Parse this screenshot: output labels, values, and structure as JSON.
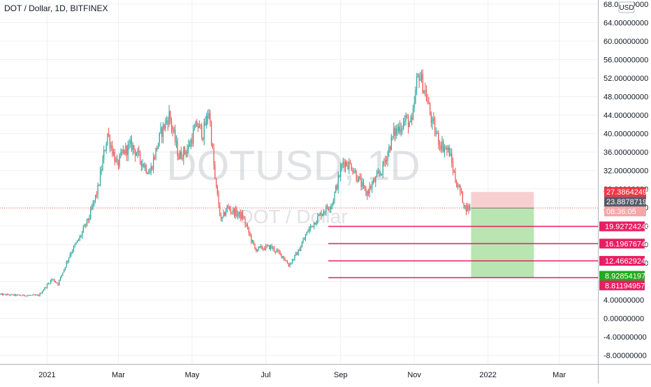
{
  "title": "DOT / Dollar, 1D, BITFINEX",
  "watermark": {
    "main": "DOTUSD, 1D",
    "sub": "DOT / Dollar"
  },
  "currency_badge": "USD",
  "countdown": "08:36:05",
  "colors": {
    "up": "#26a69a",
    "down": "#ef5350",
    "grid": "#eef0f3",
    "level_line": "#e91e63",
    "stop_zone": "#f8cfd1",
    "target_zone": "#b8e5b2",
    "current_price_line": "#f44336"
  },
  "chart_data": {
    "type": "candlestick",
    "title": "DOT / Dollar, 1D, BITFINEX",
    "x_axis_labels": [
      "2021",
      "Mar",
      "May",
      "Jul",
      "Sep",
      "Nov",
      "2022",
      "Mar"
    ],
    "y_axis_labels": [
      "68.00000000",
      "64.00000000",
      "60.00000000",
      "56.00000000",
      "52.00000000",
      "48.00000000",
      "44.00000000",
      "40.00000000",
      "36.00000000",
      "32.00000000",
      "28.00000000",
      "24.00000000",
      "20.00000000",
      "16.00000000",
      "12.00000000",
      "8.00000000",
      "4.00000000",
      "0.00000000",
      "-4.00000000",
      "-8.00000000"
    ],
    "ylim": [
      -10,
      68
    ],
    "xlim": [
      "2020-11-23",
      "2022-04-02"
    ],
    "close_path": [
      [
        "2020-11-23",
        5.2
      ],
      [
        "2020-12-10",
        5.0
      ],
      [
        "2020-12-25",
        5.0
      ],
      [
        "2021-01-05",
        8.5
      ],
      [
        "2021-01-10",
        7.5
      ],
      [
        "2021-01-20",
        14.0
      ],
      [
        "2021-01-28",
        17.5
      ],
      [
        "2021-02-05",
        22.0
      ],
      [
        "2021-02-12",
        28.0
      ],
      [
        "2021-02-20",
        40.0
      ],
      [
        "2021-02-28",
        33.0
      ],
      [
        "2021-03-05",
        36.0
      ],
      [
        "2021-03-12",
        37.5
      ],
      [
        "2021-03-20",
        34.0
      ],
      [
        "2021-03-27",
        31.5
      ],
      [
        "2021-04-05",
        40.0
      ],
      [
        "2021-04-12",
        44.0
      ],
      [
        "2021-04-20",
        35.0
      ],
      [
        "2021-04-28",
        37.0
      ],
      [
        "2021-05-05",
        42.0
      ],
      [
        "2021-05-10",
        40.0
      ],
      [
        "2021-05-15",
        45.0
      ],
      [
        "2021-05-20",
        30.0
      ],
      [
        "2021-05-25",
        21.0
      ],
      [
        "2021-05-30",
        24.0
      ],
      [
        "2021-06-05",
        23.0
      ],
      [
        "2021-06-12",
        22.0
      ],
      [
        "2021-06-22",
        15.0
      ],
      [
        "2021-07-05",
        15.5
      ],
      [
        "2021-07-15",
        13.5
      ],
      [
        "2021-07-20",
        11.5
      ],
      [
        "2021-07-28",
        14.5
      ],
      [
        "2021-08-05",
        19.0
      ],
      [
        "2021-08-15",
        22.5
      ],
      [
        "2021-08-25",
        25.0
      ],
      [
        "2021-09-03",
        34.0
      ],
      [
        "2021-09-10",
        33.0
      ],
      [
        "2021-09-22",
        27.0
      ],
      [
        "2021-10-05",
        32.0
      ],
      [
        "2021-10-15",
        40.0
      ],
      [
        "2021-10-25",
        43.0
      ],
      [
        "2021-10-30",
        42.0
      ],
      [
        "2021-11-03",
        51.0
      ],
      [
        "2021-11-05",
        53.0
      ],
      [
        "2021-11-10",
        49.0
      ],
      [
        "2021-11-16",
        42.0
      ],
      [
        "2021-11-22",
        38.0
      ],
      [
        "2021-11-30",
        36.0
      ],
      [
        "2021-12-05",
        30.0
      ],
      [
        "2021-12-09",
        27.5
      ],
      [
        "2021-12-13",
        24.0
      ],
      [
        "2021-12-17",
        23.89
      ]
    ],
    "price_levels": [
      {
        "label": "27.38642493",
        "value": 27.38642493,
        "color": "#f23645"
      },
      {
        "label": "23.88787195",
        "value": 23.88787195,
        "color": "#555a66"
      },
      {
        "label": "19.92724244",
        "value": 19.92724244,
        "color": "#e91e63"
      },
      {
        "label": "16.19676744",
        "value": 16.19676744,
        "color": "#e91e63"
      },
      {
        "label": "12.46629243",
        "value": 12.46629243,
        "color": "#e91e63"
      },
      {
        "label": "8.92854197",
        "value": 8.92854197,
        "color": "#22ab1b"
      },
      {
        "label": "8.81194957",
        "value": 8.81194957,
        "color": "#e91e63"
      }
    ],
    "horizontal_lines": [
      19.92724244,
      16.19676744,
      12.46629243,
      8.81194957
    ],
    "position_box": {
      "type": "long",
      "entry": 23.88787195,
      "stop": 27.38642493,
      "target": 8.92854197,
      "start": "2021-12-18",
      "end": "2022-02-08"
    },
    "grid": true
  }
}
